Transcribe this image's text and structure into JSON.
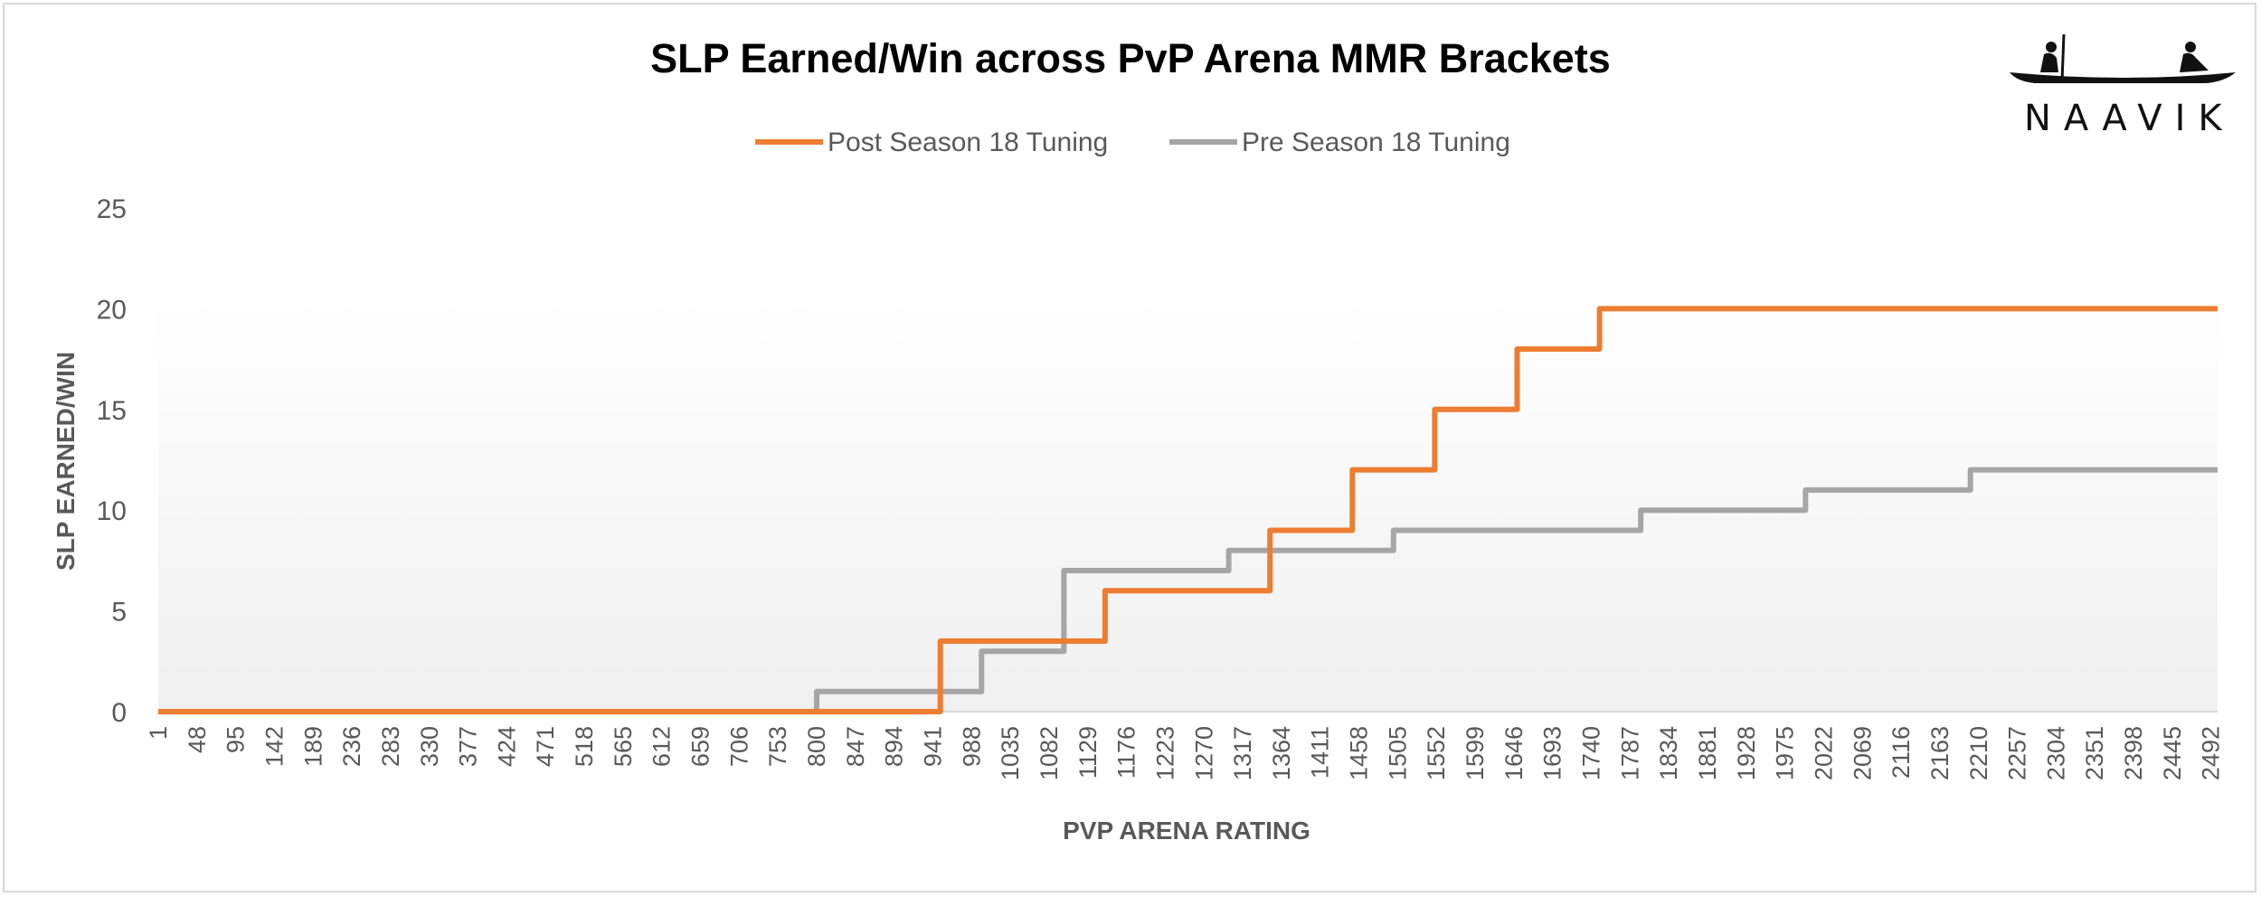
{
  "brand": {
    "name": "NAAVIK",
    "logo_icon": "canoe-icon"
  },
  "colors": {
    "post": "#ED7D31",
    "pre": "#A5A5A5",
    "text": "#595959",
    "title": "#000000"
  },
  "chart_data": {
    "type": "line",
    "step": true,
    "title": "SLP Earned/Win across PvP Arena MMR Brackets",
    "xlabel": "PVP ARENA RATING",
    "ylabel": "SLP EARNED/WIN",
    "ylim": [
      0,
      25
    ],
    "yticks": [
      0,
      5,
      10,
      15,
      20,
      25
    ],
    "xlim": [
      1,
      2500
    ],
    "xticks": [
      1,
      48,
      95,
      142,
      189,
      236,
      283,
      330,
      377,
      424,
      471,
      518,
      565,
      612,
      659,
      706,
      753,
      800,
      847,
      894,
      941,
      988,
      1035,
      1082,
      1129,
      1176,
      1223,
      1270,
      1317,
      1364,
      1411,
      1458,
      1505,
      1552,
      1599,
      1646,
      1693,
      1740,
      1787,
      1834,
      1881,
      1928,
      1975,
      2022,
      2069,
      2116,
      2163,
      2210,
      2257,
      2304,
      2351,
      2398,
      2445,
      2492
    ],
    "legend_position": "top-center",
    "series": [
      {
        "name": "Post Season 18 Tuning",
        "color": "#ED7D31",
        "points": [
          [
            1,
            0
          ],
          [
            950,
            0
          ],
          [
            950,
            3.5
          ],
          [
            1150,
            3.5
          ],
          [
            1150,
            6
          ],
          [
            1350,
            6
          ],
          [
            1350,
            9
          ],
          [
            1450,
            9
          ],
          [
            1450,
            12
          ],
          [
            1550,
            12
          ],
          [
            1550,
            15
          ],
          [
            1650,
            15
          ],
          [
            1650,
            18
          ],
          [
            1750,
            18
          ],
          [
            1750,
            20
          ],
          [
            2500,
            20
          ]
        ]
      },
      {
        "name": "Pre Season 18 Tuning",
        "color": "#A5A5A5",
        "points": [
          [
            1,
            0
          ],
          [
            800,
            0
          ],
          [
            800,
            1
          ],
          [
            1000,
            1
          ],
          [
            1000,
            3
          ],
          [
            1100,
            3
          ],
          [
            1100,
            7
          ],
          [
            1300,
            7
          ],
          [
            1300,
            8
          ],
          [
            1500,
            8
          ],
          [
            1500,
            9
          ],
          [
            1800,
            9
          ],
          [
            1800,
            10
          ],
          [
            2000,
            10
          ],
          [
            2000,
            11
          ],
          [
            2200,
            11
          ],
          [
            2200,
            12
          ],
          [
            2500,
            12
          ]
        ]
      }
    ]
  }
}
